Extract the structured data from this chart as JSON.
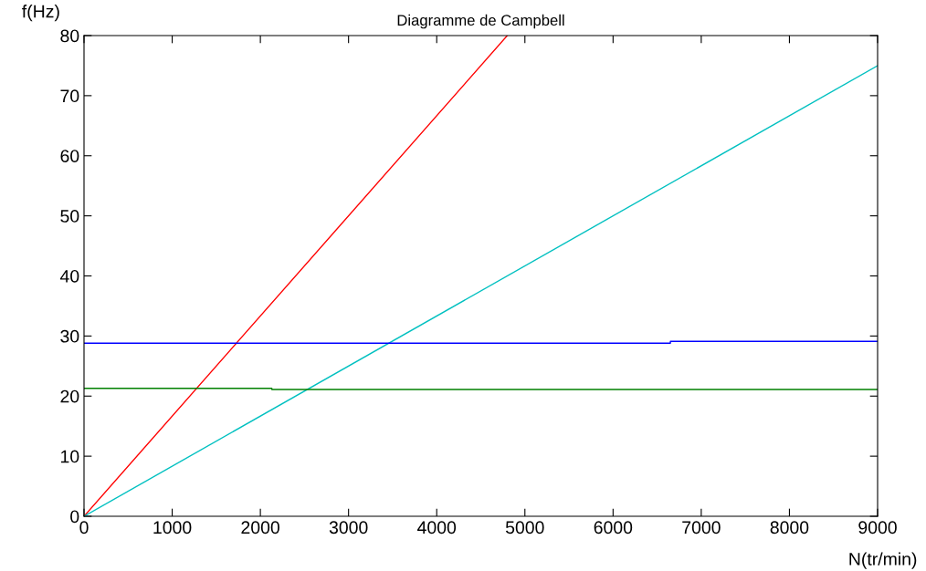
{
  "chart_data": {
    "type": "line",
    "title": "Diagramme de Campbell",
    "xlabel": "N(tr/min)",
    "ylabel": "f(Hz)",
    "series": [
      {
        "color": "#ff0000",
        "x": [
          0,
          4800
        ],
        "values": [
          0,
          80
        ]
      },
      {
        "color": "#00c0c0",
        "x": [
          0,
          9000
        ],
        "values": [
          0,
          75
        ]
      },
      {
        "type": "step",
        "color": "#0000ff",
        "x": [
          0,
          6650,
          9000
        ],
        "values": [
          28.8,
          29.1,
          29.1
        ]
      },
      {
        "type": "step",
        "color": "#008000",
        "x": [
          0,
          2130,
          9000
        ],
        "values": [
          21.3,
          21.1,
          21.1
        ]
      }
    ],
    "xlim": [
      0,
      9000
    ],
    "xticks": [
      0,
      1000,
      2000,
      3000,
      4000,
      5000,
      6000,
      7000,
      8000,
      9000
    ],
    "ylim": [
      0,
      80
    ],
    "yticks": [
      0,
      10,
      20,
      30,
      40,
      50,
      60,
      70,
      80
    ],
    "grid": false,
    "legend": false
  }
}
